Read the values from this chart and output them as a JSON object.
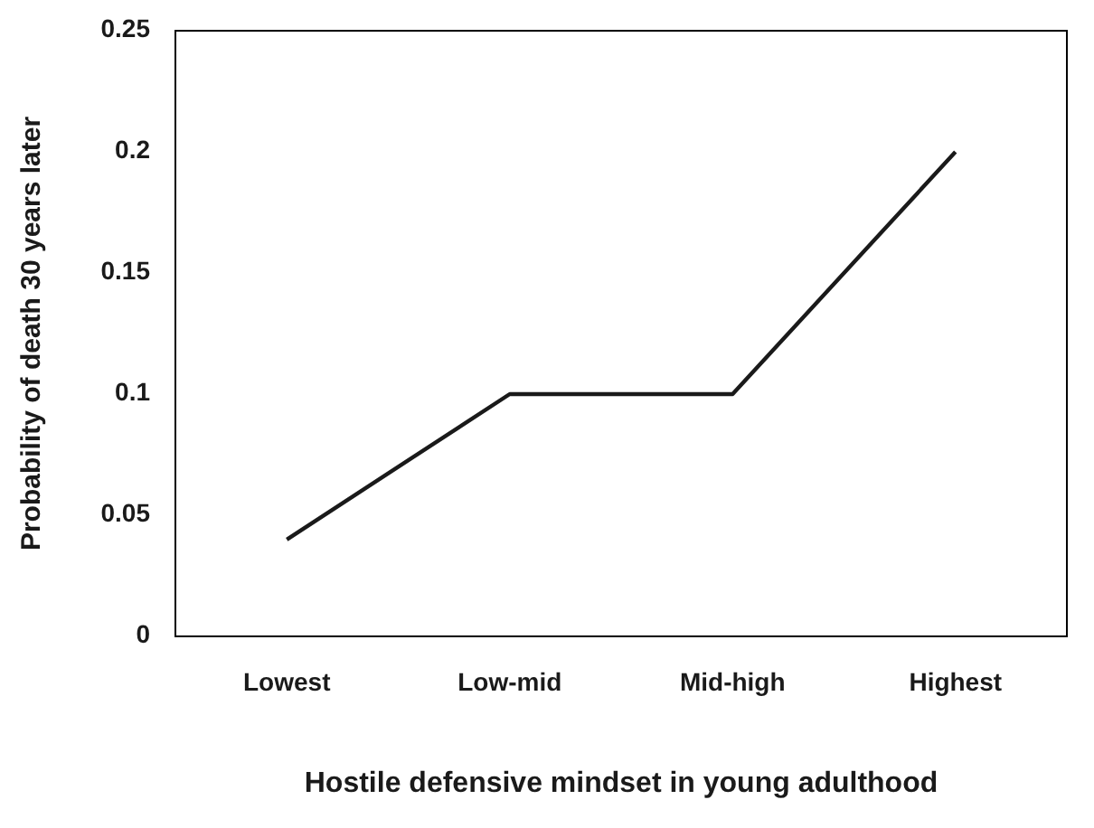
{
  "chart_data": {
    "type": "line",
    "xlabel": "Hostile defensive mindset in young adulthood",
    "ylabel": "Probability of death 30 years later",
    "categories": [
      "Lowest",
      "Low-mid",
      "Mid-high",
      "Highest"
    ],
    "series": [
      {
        "color": "#1a1a1a",
        "values": [
          0.04,
          0.1,
          0.1,
          0.2
        ]
      }
    ],
    "ylim": [
      0,
      0.25
    ],
    "yticks": [
      0,
      0.05,
      0.1,
      0.15,
      0.2,
      0.25
    ],
    "grid": false,
    "marker": "none",
    "line_style": "solid"
  }
}
